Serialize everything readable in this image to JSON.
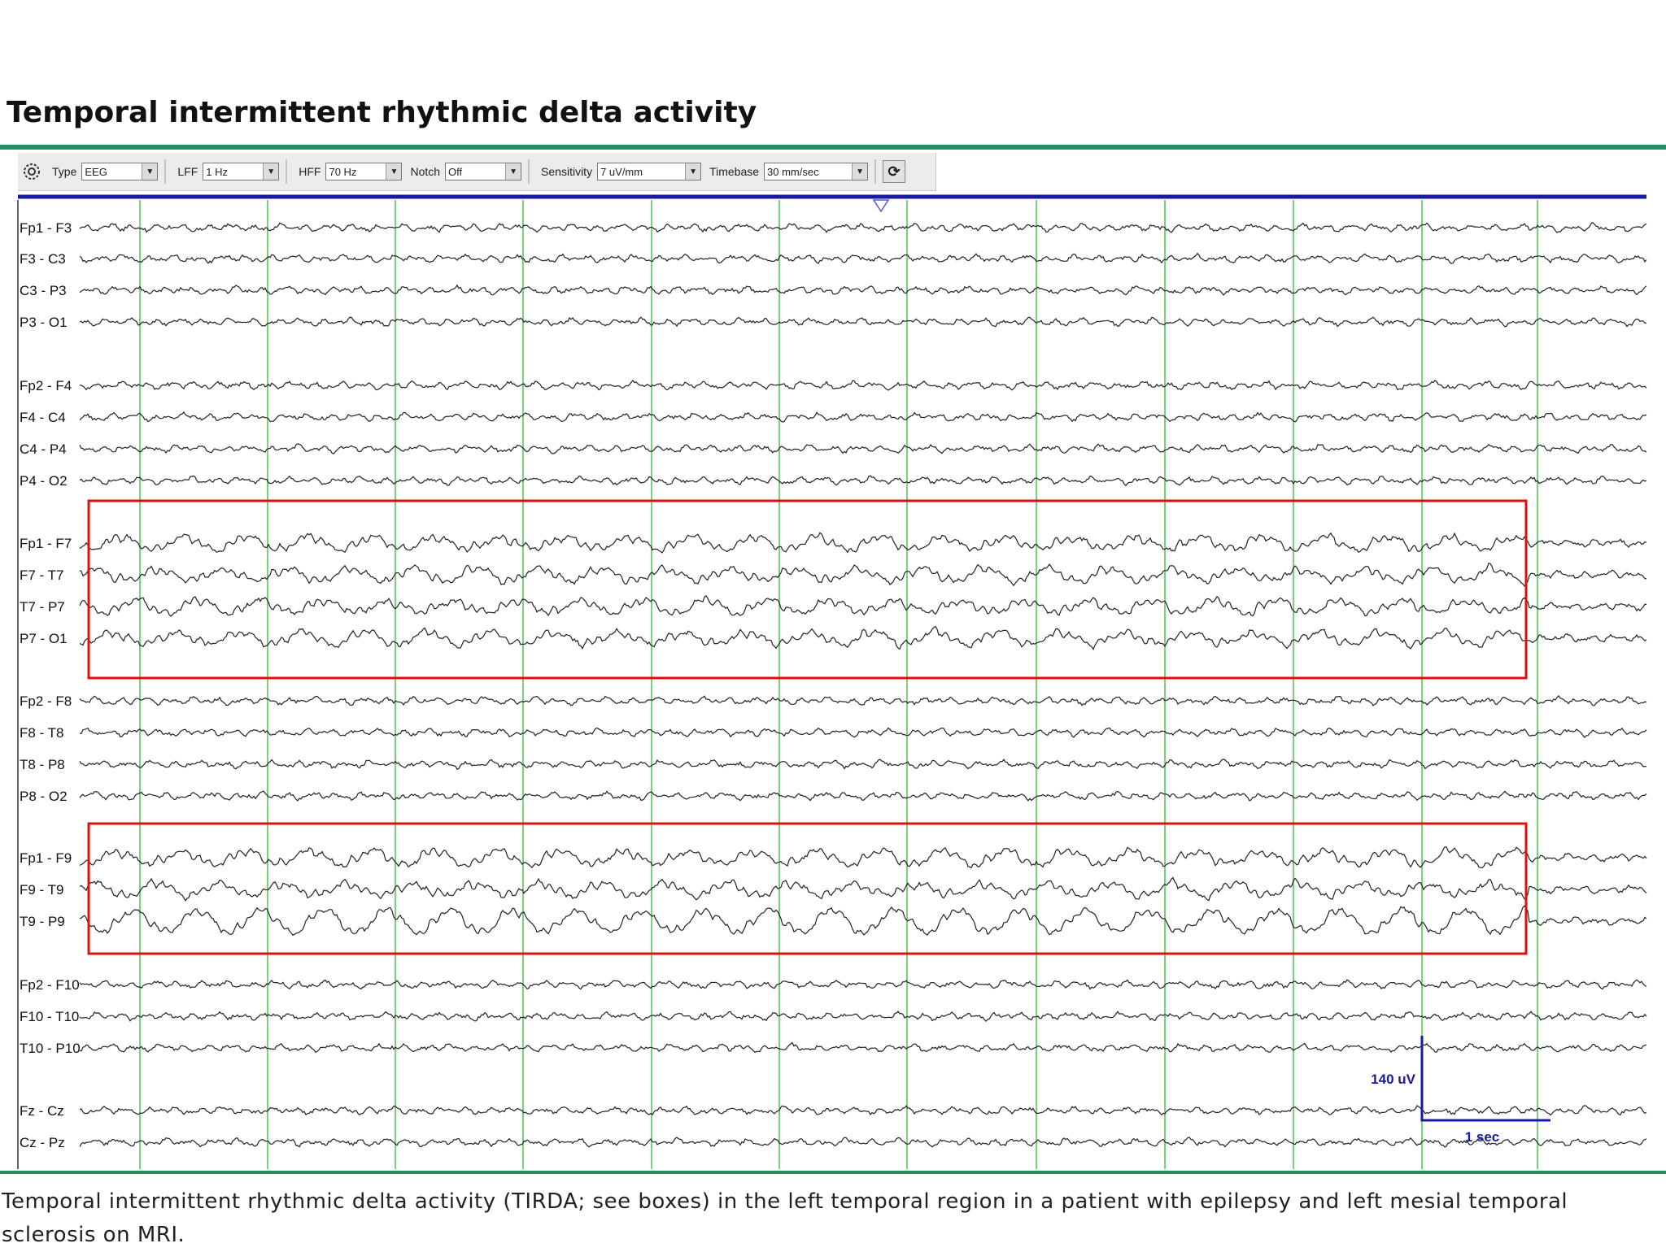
{
  "title": "Temporal intermittent rhythmic delta activity",
  "caption": "Temporal intermittent rhythmic delta activity (TIRDA; see boxes) in the left temporal region in a patient with epilepsy and left mesial temporal sclerosis on MRI.",
  "colors": {
    "accent_rule": "#1f8f5f",
    "timeline": "#1a1aa0",
    "grid": "#5cc65c",
    "highlight_box": "#e01010",
    "trace": "#222222",
    "scale": "#1a1aa0"
  },
  "toolbar": {
    "settings_icon": "gear-icon",
    "type_label": "Type",
    "type_value": "EEG",
    "lff_label": "LFF",
    "lff_value": "1 Hz",
    "hff_label": "HFF",
    "hff_value": "70 Hz",
    "notch_label": "Notch",
    "notch_value": "Off",
    "sensitivity_label": "Sensitivity",
    "sensitivity_value": "7 uV/mm",
    "timebase_label": "Timebase",
    "timebase_value": "30 mm/sec",
    "refresh_icon": "refresh-icon"
  },
  "channels": [
    {
      "label": "Fp1 - F3",
      "highlight": false
    },
    {
      "label": "F3 - C3",
      "highlight": false
    },
    {
      "label": "C3 - P3",
      "highlight": false
    },
    {
      "label": "P3 - O1",
      "highlight": false
    },
    {
      "label": "Fp2 - F4",
      "highlight": false
    },
    {
      "label": "F4 - C4",
      "highlight": false
    },
    {
      "label": "C4 - P4",
      "highlight": false
    },
    {
      "label": "P4 - O2",
      "highlight": false
    },
    {
      "label": "Fp1 - F7",
      "highlight": true
    },
    {
      "label": "F7 - T7",
      "highlight": true
    },
    {
      "label": "T7 - P7",
      "highlight": true
    },
    {
      "label": "P7 - O1",
      "highlight": true
    },
    {
      "label": "Fp2 - F8",
      "highlight": false
    },
    {
      "label": "F8 - T8",
      "highlight": false
    },
    {
      "label": "T8 - P8",
      "highlight": false
    },
    {
      "label": "P8 - O2",
      "highlight": false
    },
    {
      "label": "Fp1 - F9",
      "highlight": true
    },
    {
      "label": "F9 - T9",
      "highlight": true
    },
    {
      "label": "T9 - P9",
      "highlight": true
    },
    {
      "label": "Fp2 - F10",
      "highlight": false
    },
    {
      "label": "F10 - T10",
      "highlight": false
    },
    {
      "label": "T10 - P10",
      "highlight": false
    },
    {
      "label": "Fz - Cz",
      "highlight": false
    },
    {
      "label": "Cz - Pz",
      "highlight": false
    }
  ],
  "highlight_groups": [
    {
      "name": "left-temporal-chain",
      "channels": [
        "Fp1 - F7",
        "F7 - T7",
        "T7 - P7",
        "P7 - O1"
      ]
    },
    {
      "name": "left-subtemporal-chain",
      "channels": [
        "Fp1 - F9",
        "F9 - T9",
        "T9 - P9"
      ]
    }
  ],
  "scale_bar": {
    "amplitude_label": "140 uV",
    "time_label": "1 sec"
  }
}
